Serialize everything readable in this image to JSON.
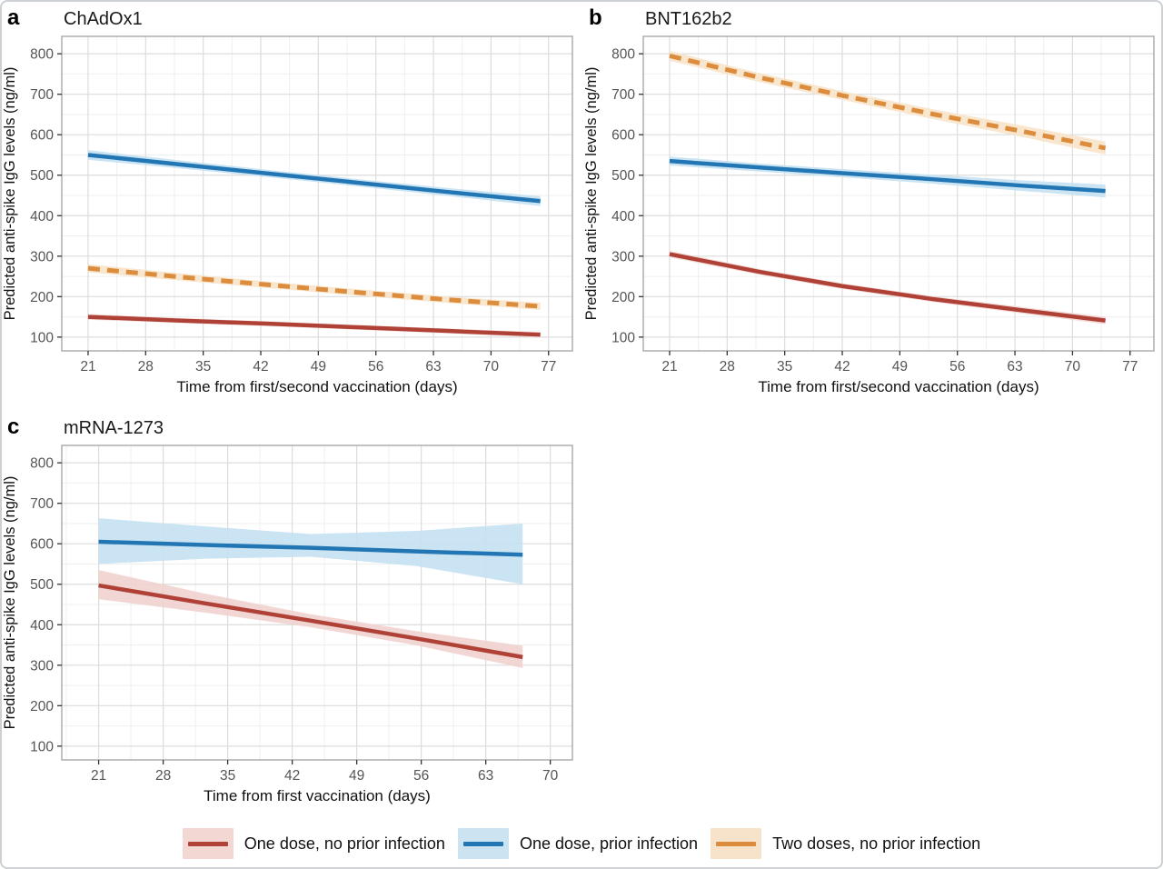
{
  "figure": {
    "legend": {
      "items": [
        {
          "label": "One dose, no prior infection",
          "line_color": "#AF4136",
          "fill_color": "#F2D7D3"
        },
        {
          "label": "One dose, prior infection",
          "line_color": "#2376B4",
          "fill_color": "#CCE4F2"
        },
        {
          "label": "Two doses, no prior infection",
          "line_color": "#DC8C3D",
          "fill_color": "#F7E3C9"
        }
      ]
    },
    "colors": {
      "grid_major": "#dcdcdc",
      "grid_minor": "#efefef",
      "panel_border": "#a8a8a8",
      "tick_text": "#555555",
      "axis_text": "#111111"
    }
  },
  "chart_data": [
    {
      "id": "a",
      "letter": "a",
      "type": "line",
      "title": "ChAdOx1",
      "xlabel": "Time from first/second vaccination (days)",
      "ylabel": "Predicted anti-spike IgG levels (ng/ml)",
      "xlim": [
        17.8,
        79.9
      ],
      "ylim": [
        66,
        843
      ],
      "xticks": [
        21,
        28,
        35,
        42,
        49,
        56,
        63,
        70,
        77
      ],
      "yticks": [
        100,
        200,
        300,
        400,
        500,
        600,
        700,
        800
      ],
      "grid": true,
      "series": [
        {
          "name": "One dose, no prior infection",
          "color": "#AF4136",
          "fill": "#F2D7D3",
          "dashed": false,
          "x": [
            21,
            32,
            43,
            54,
            65,
            76
          ],
          "y": [
            150,
            141,
            133,
            124,
            115,
            106
          ],
          "lower": [
            143,
            135,
            127,
            118,
            109,
            99
          ],
          "upper": [
            157,
            147,
            139,
            130,
            121,
            113
          ]
        },
        {
          "name": "One dose, prior infection",
          "color": "#2376B4",
          "fill": "#C4E1F2",
          "dashed": false,
          "x": [
            21,
            32,
            43,
            54,
            65,
            76
          ],
          "y": [
            550,
            527,
            504,
            481,
            458,
            436
          ],
          "lower": [
            538,
            517,
            495,
            472,
            448,
            424
          ],
          "upper": [
            562,
            537,
            513,
            490,
            468,
            448
          ]
        },
        {
          "name": "Two doses, no prior infection",
          "color": "#DC8C3D",
          "fill": "#F7E3C9",
          "dashed": true,
          "x": [
            21,
            32,
            43,
            54,
            65,
            76
          ],
          "y": [
            270,
            249,
            229,
            210,
            192,
            176
          ],
          "lower": [
            260,
            240,
            221,
            202,
            184,
            167
          ],
          "upper": [
            280,
            258,
            237,
            218,
            200,
            185
          ]
        }
      ]
    },
    {
      "id": "b",
      "letter": "b",
      "type": "line",
      "title": "BNT162b2",
      "xlabel": "Time from first/second vaccination (days)",
      "ylabel": "Predicted anti-spike IgG levels (ng/ml)",
      "xlim": [
        17.8,
        79.9
      ],
      "ylim": [
        66,
        843
      ],
      "xticks": [
        21,
        28,
        35,
        42,
        49,
        56,
        63,
        70,
        77
      ],
      "yticks": [
        100,
        200,
        300,
        400,
        500,
        600,
        700,
        800
      ],
      "grid": true,
      "series": [
        {
          "name": "One dose, no prior infection",
          "color": "#AF4136",
          "fill": "#F2D7D3",
          "dashed": false,
          "x": [
            21,
            32,
            42,
            53,
            64,
            74
          ],
          "y": [
            305,
            261,
            226,
            194,
            166,
            141
          ],
          "lower": [
            297,
            254,
            219,
            187,
            158,
            132
          ],
          "upper": [
            313,
            268,
            233,
            201,
            174,
            150
          ]
        },
        {
          "name": "One dose, prior infection",
          "color": "#2376B4",
          "fill": "#C4E1F2",
          "dashed": false,
          "x": [
            21,
            32,
            42,
            53,
            64,
            74
          ],
          "y": [
            535,
            519,
            505,
            490,
            474,
            461
          ],
          "lower": [
            524,
            509,
            495,
            479,
            461,
            445
          ],
          "upper": [
            546,
            529,
            515,
            501,
            487,
            477
          ]
        },
        {
          "name": "Two doses, no prior infection",
          "color": "#DC8C3D",
          "fill": "#F7E3C9",
          "dashed": true,
          "x": [
            21,
            32,
            42,
            53,
            64,
            74
          ],
          "y": [
            795,
            741,
            697,
            651,
            608,
            567
          ],
          "lower": [
            783,
            730,
            686,
            639,
            594,
            551
          ],
          "upper": [
            807,
            752,
            708,
            663,
            622,
            583
          ]
        }
      ]
    },
    {
      "id": "c",
      "letter": "c",
      "type": "line",
      "title": "mRNA-1273",
      "xlabel": "Time from first vaccination (days)",
      "ylabel": "Predicted anti-spike IgG levels (ng/ml)",
      "xlim": [
        17.0,
        72.4
      ],
      "ylim": [
        66,
        843
      ],
      "xticks": [
        21,
        28,
        35,
        42,
        49,
        56,
        63,
        70
      ],
      "yticks": [
        100,
        200,
        300,
        400,
        500,
        600,
        700,
        800
      ],
      "grid": true,
      "series": [
        {
          "name": "One dose, no prior infection",
          "color": "#AF4136",
          "fill": "#F0D2CE",
          "dashed": false,
          "x": [
            21,
            32.5,
            44,
            55.5,
            67
          ],
          "y": [
            497,
            453,
            410,
            366,
            320
          ],
          "lower": [
            463,
            430,
            394,
            349,
            293
          ],
          "upper": [
            535,
            477,
            426,
            384,
            348
          ]
        },
        {
          "name": "One dose, prior infection",
          "color": "#2376B4",
          "fill": "#C4E1F2",
          "dashed": false,
          "x": [
            21,
            32.5,
            44,
            55.5,
            67
          ],
          "y": [
            605,
            597,
            590,
            581,
            573
          ],
          "lower": [
            550,
            563,
            568,
            545,
            500
          ],
          "upper": [
            663,
            643,
            624,
            632,
            650
          ]
        }
      ]
    }
  ]
}
